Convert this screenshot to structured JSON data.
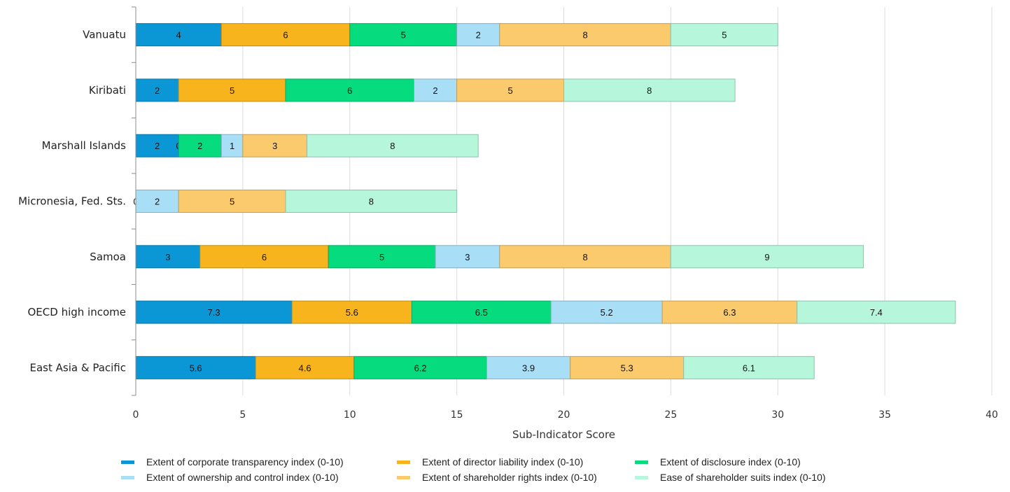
{
  "chart_data": {
    "type": "bar",
    "orientation": "horizontal",
    "stacked": true,
    "categories": [
      "Vanuatu",
      "Kiribati",
      "Marshall Islands",
      "Micronesia, Fed. Sts.",
      "Samoa",
      "OECD high income",
      "East Asia & Pacific"
    ],
    "series": [
      {
        "name": "Extent of corporate transparency index (0-10)",
        "color": "#0b96d6",
        "values": [
          4,
          2,
          2,
          0,
          3,
          7.3,
          5.6
        ]
      },
      {
        "name": "Extent of director liability index (0-10)",
        "color": "#f8b41c",
        "values": [
          6,
          5,
          0,
          null,
          6,
          5.6,
          4.6
        ]
      },
      {
        "name": "Extent of disclosure index (0-10)",
        "color": "#06db7e",
        "values": [
          5,
          6,
          2,
          null,
          5,
          6.5,
          6.2
        ]
      },
      {
        "name": "Extent of ownership and control index (0-10)",
        "color": "#a9def7",
        "values": [
          2,
          2,
          1,
          2,
          3,
          5.2,
          3.9
        ]
      },
      {
        "name": "Extent of shareholder rights index (0-10)",
        "color": "#fbca6c",
        "values": [
          8,
          5,
          3,
          5,
          8,
          6.3,
          5.3
        ]
      },
      {
        "name": "Ease of shareholder suits index (0-10)",
        "color": "#b6f7db",
        "values": [
          5,
          8,
          8,
          8,
          9,
          7.4,
          6.1
        ]
      }
    ],
    "xlabel": "Sub-Indicator Score",
    "xlim": [
      0,
      40
    ],
    "xticks": [
      0,
      5,
      10,
      15,
      20,
      25,
      30,
      35,
      40
    ],
    "grid": true,
    "legend_position": "bottom"
  }
}
